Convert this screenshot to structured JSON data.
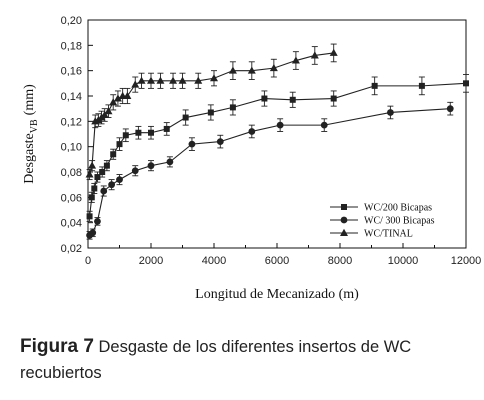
{
  "chart_data": {
    "type": "line",
    "xlabel": "Longitud de Mecanizado (m)",
    "ylabel_main": "Desgaste",
    "ylabel_sub": "VB",
    "ylabel_unit": "(mm)",
    "xlim": [
      0,
      12000
    ],
    "ylim": [
      0.02,
      0.2
    ],
    "x_ticks": [
      0,
      2000,
      4000,
      6000,
      8000,
      10000,
      12000
    ],
    "x_tick_labels": [
      "0",
      "2000",
      "4000",
      "6000",
      "8000",
      "10000",
      "12000"
    ],
    "y_ticks": [
      0.02,
      0.04,
      0.06,
      0.08,
      0.1,
      0.12,
      0.14,
      0.16,
      0.18,
      0.2
    ],
    "y_tick_labels": [
      "0,02",
      "0,04",
      "0,06",
      "0,08",
      "0,10",
      "0,12",
      "0,14",
      "0,16",
      "0,18",
      "0,20"
    ],
    "legend_position": "bottom-right",
    "grid": false,
    "series": [
      {
        "name": "WC/200 Bicapas",
        "marker": "square",
        "x": [
          50,
          120,
          200,
          300,
          450,
          600,
          800,
          1000,
          1200,
          1600,
          2000,
          2500,
          3100,
          3900,
          4600,
          5600,
          6500,
          7800,
          9100,
          10600,
          12000
        ],
        "y": [
          0.045,
          0.06,
          0.067,
          0.076,
          0.08,
          0.085,
          0.094,
          0.102,
          0.109,
          0.111,
          0.111,
          0.114,
          0.123,
          0.127,
          0.131,
          0.138,
          0.137,
          0.138,
          0.148,
          0.148,
          0.15
        ],
        "err": [
          0.004,
          0.004,
          0.004,
          0.004,
          0.004,
          0.004,
          0.004,
          0.005,
          0.005,
          0.005,
          0.005,
          0.005,
          0.006,
          0.006,
          0.006,
          0.006,
          0.006,
          0.006,
          0.007,
          0.007,
          0.007
        ]
      },
      {
        "name": "WC/ 300 Bicapas",
        "marker": "circle",
        "x": [
          50,
          150,
          300,
          500,
          750,
          1000,
          1500,
          2000,
          2600,
          3300,
          4200,
          5200,
          6100,
          7500,
          9600,
          11500
        ],
        "y": [
          0.03,
          0.032,
          0.041,
          0.065,
          0.07,
          0.074,
          0.081,
          0.085,
          0.088,
          0.102,
          0.104,
          0.112,
          0.117,
          0.117,
          0.127,
          0.13
        ],
        "err": [
          0.003,
          0.003,
          0.003,
          0.004,
          0.004,
          0.004,
          0.004,
          0.004,
          0.004,
          0.005,
          0.005,
          0.005,
          0.005,
          0.005,
          0.005,
          0.005
        ]
      },
      {
        "name": "WC/TINAL",
        "marker": "triangle",
        "x": [
          50,
          130,
          230,
          330,
          430,
          530,
          650,
          800,
          950,
          1100,
          1250,
          1500,
          1700,
          2000,
          2300,
          2700,
          3000,
          3500,
          4000,
          4600,
          5200,
          5900,
          6600,
          7200,
          7800
        ],
        "y": [
          0.078,
          0.085,
          0.12,
          0.121,
          0.123,
          0.125,
          0.128,
          0.135,
          0.138,
          0.14,
          0.14,
          0.149,
          0.152,
          0.152,
          0.152,
          0.152,
          0.152,
          0.152,
          0.154,
          0.16,
          0.16,
          0.162,
          0.168,
          0.172,
          0.174
        ],
        "err": [
          0.004,
          0.004,
          0.005,
          0.005,
          0.005,
          0.005,
          0.005,
          0.006,
          0.006,
          0.006,
          0.006,
          0.006,
          0.006,
          0.006,
          0.006,
          0.006,
          0.006,
          0.006,
          0.006,
          0.007,
          0.007,
          0.007,
          0.007,
          0.007,
          0.007
        ]
      }
    ]
  },
  "caption": {
    "figure_label": "Figura 7",
    "text": " Desgaste de los diferentes insertos de WC recubiertos"
  }
}
